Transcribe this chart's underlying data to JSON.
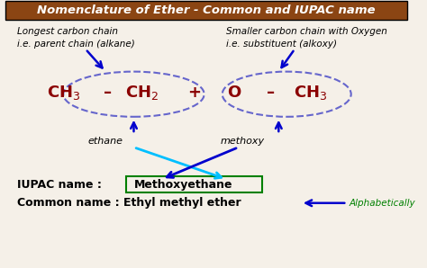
{
  "title": "Nomenclature of Ether - Common and IUPAC name",
  "title_bg": "#8B4513",
  "title_color": "white",
  "bg_color": "#F5F0E8",
  "formula_color": "#8B0000",
  "formula": "CH₃ – CH₂ + O – CH₃",
  "label_left_top1": "Longest carbon chain",
  "label_left_top2": "i.e. parent chain (alkane)",
  "label_right_top1": "Smaller carbon chain with Oxygen",
  "label_right_top2": "i.e. substituent (alkoxy)",
  "label_ethane": "ethane",
  "label_methoxy": "methoxy",
  "iupac_label": "IUPAC name : ",
  "iupac_name": "Methoxyethane",
  "common_label": "Common name : Ethyl methyl ether",
  "alphabetically": "Alphabetically",
  "ellipse1_color": "#6666CC",
  "ellipse2_color": "#6666CC",
  "arrow_color": "#0000CD",
  "cross_arrow_color": "#00BFFF",
  "iupac_box_color": "#008000"
}
